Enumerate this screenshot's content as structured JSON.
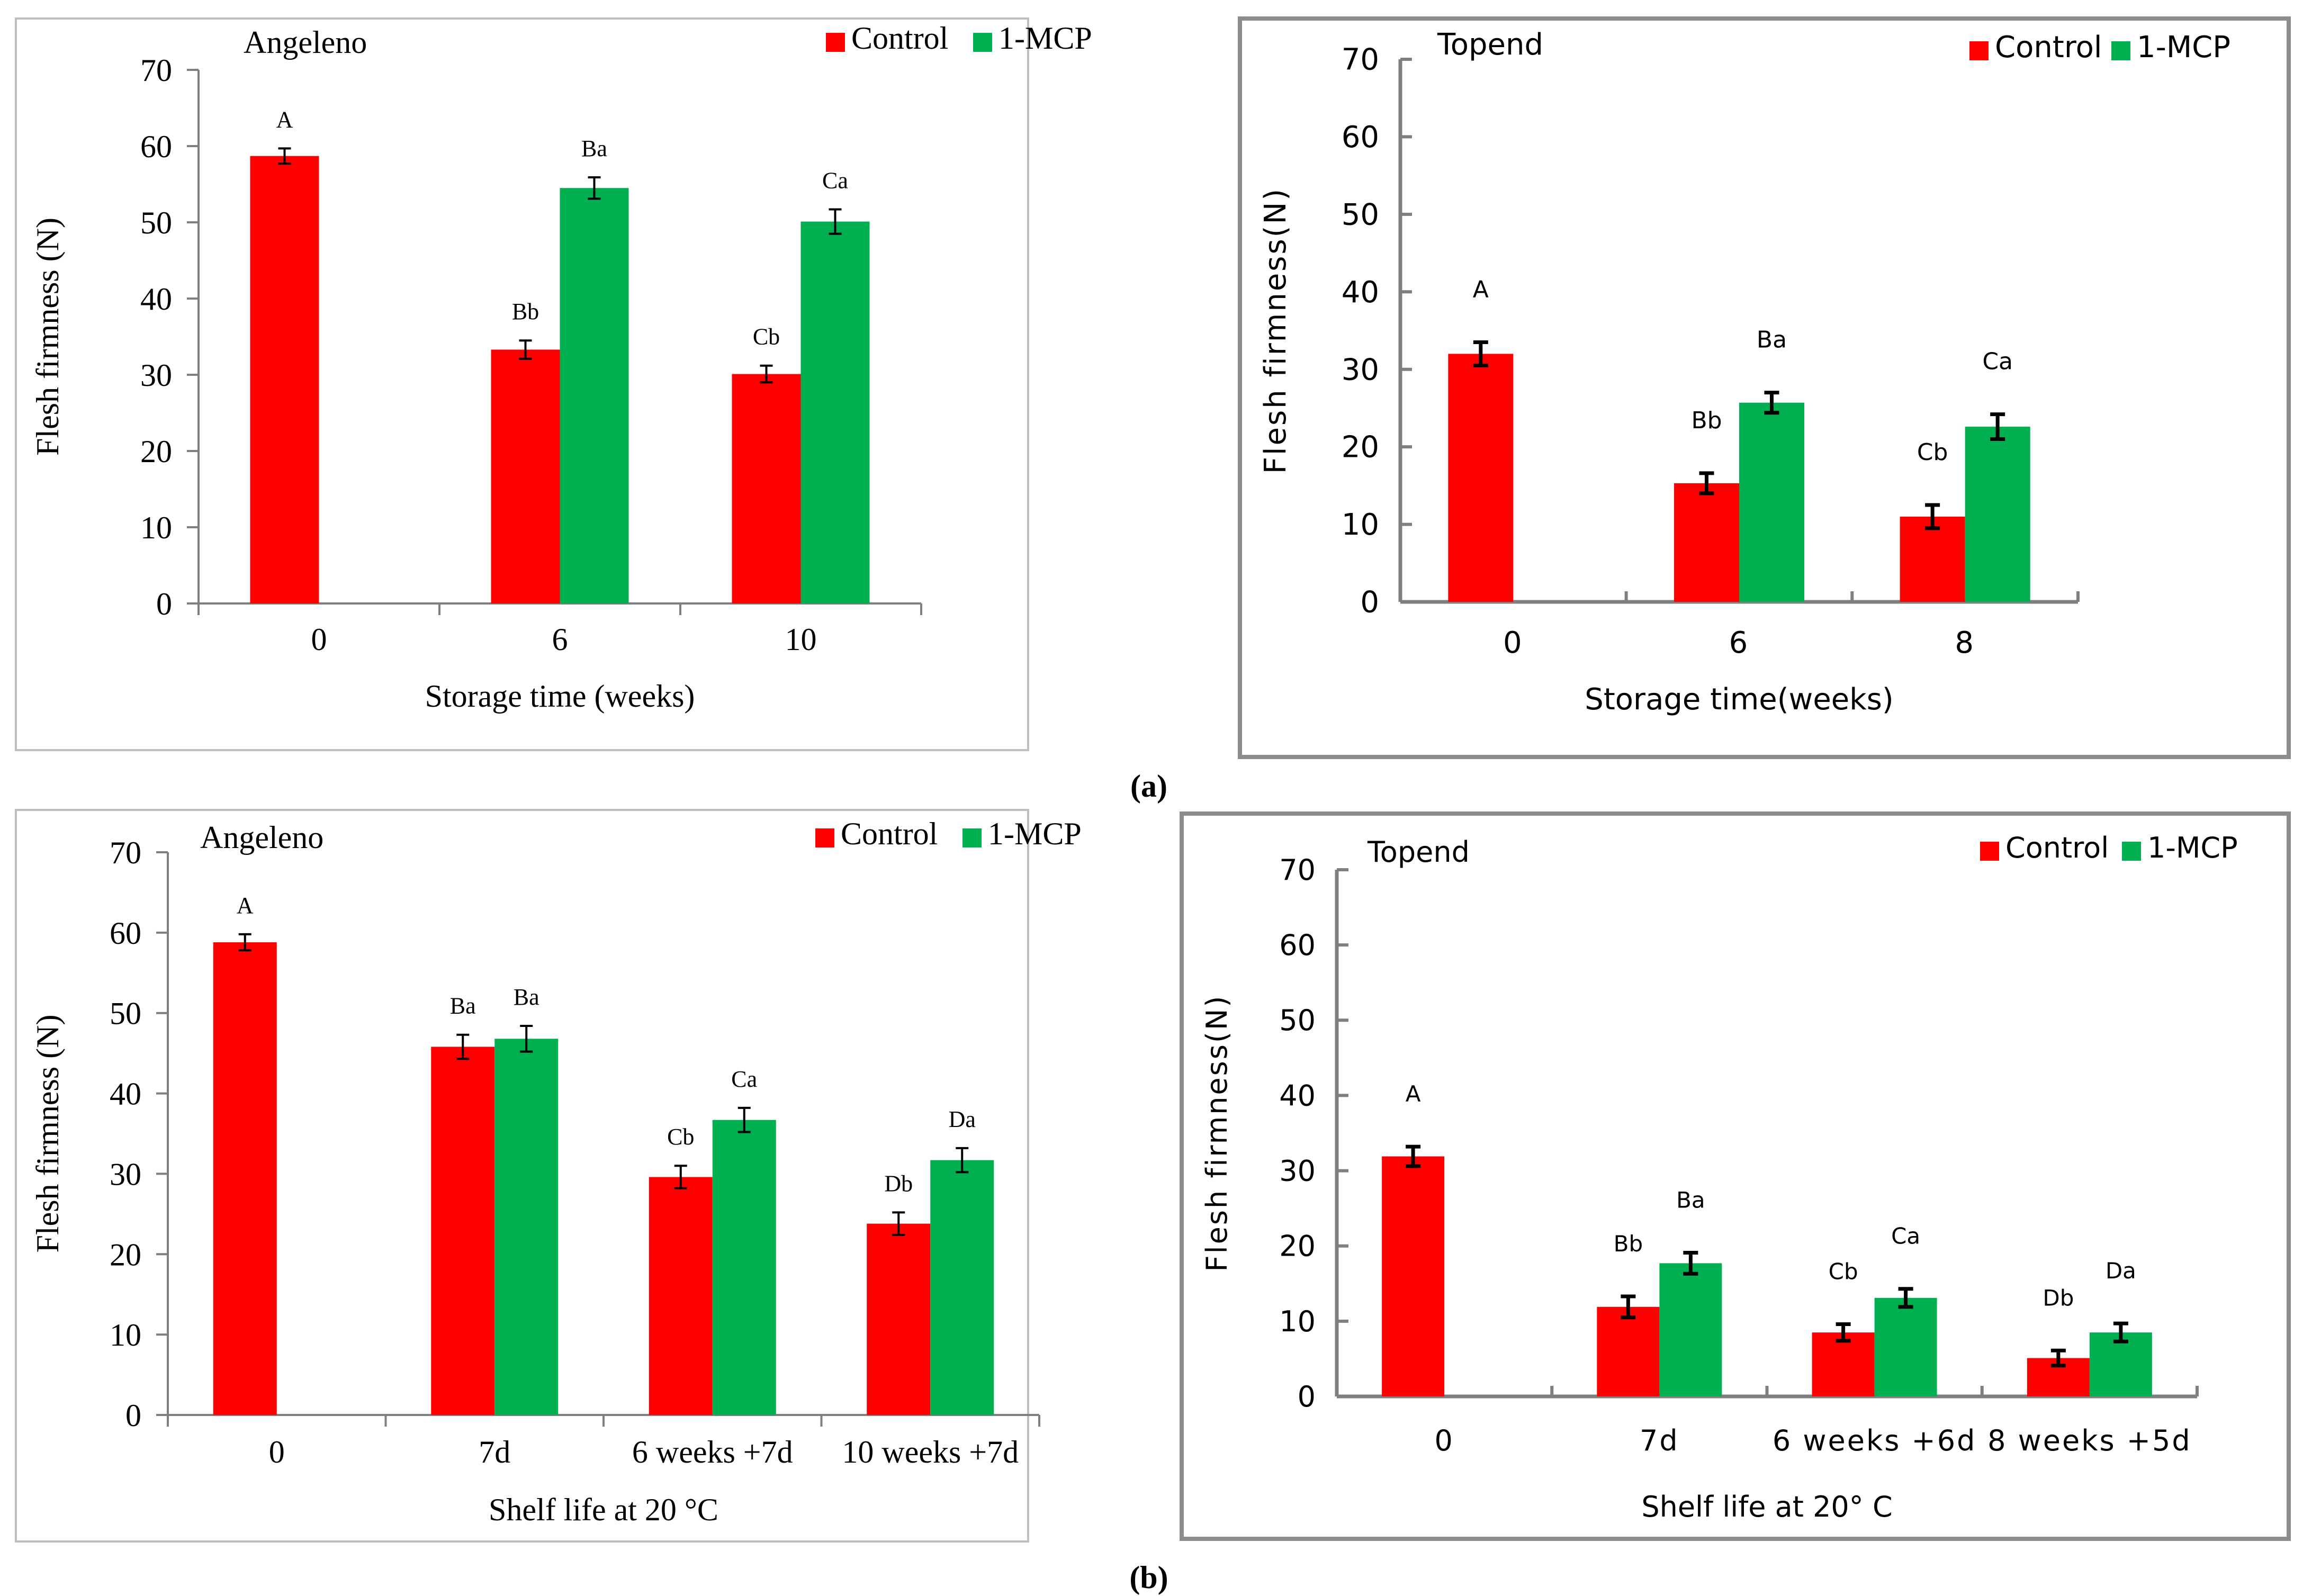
{
  "figure": {
    "panel_a_label": "(a)",
    "panel_b_label": "(b)"
  },
  "colors": {
    "control": "#ff0000",
    "mcp": "#00b050",
    "axis": "#7f7f7f",
    "frame_light": "#bfbfbf",
    "frame_dark": "#8c8c8c"
  },
  "chart_data": [
    {
      "type": "bar",
      "title": "Angeleno",
      "xlabel": "Storage time (weeks)",
      "ylabel": "Flesh firmness (N)",
      "ylim": [
        0,
        70
      ],
      "yticks": [
        0,
        10,
        20,
        30,
        40,
        50,
        60,
        70
      ],
      "categories": [
        "0",
        "6",
        "10"
      ],
      "legend": [
        "Control",
        "1-MCP"
      ],
      "series": [
        {
          "name": "Control",
          "values": [
            58.7,
            33.3,
            30.1
          ],
          "errors": [
            1.0,
            1.2,
            1.1
          ],
          "labels": [
            "A",
            "Bb",
            "Cb"
          ]
        },
        {
          "name": "1-MCP",
          "values": [
            null,
            54.5,
            50.1
          ],
          "errors": [
            null,
            1.4,
            1.6
          ],
          "labels": [
            null,
            "Ba",
            "Ca"
          ]
        }
      ]
    },
    {
      "type": "bar",
      "title": "Topend",
      "xlabel": "Storage time(weeks)",
      "ylabel": "Flesh firmness(N)",
      "ylim": [
        0,
        70
      ],
      "yticks": [
        0,
        10,
        20,
        30,
        40,
        50,
        60,
        70
      ],
      "categories": [
        "0",
        "6",
        "8"
      ],
      "legend": [
        "Control",
        "1-MCP"
      ],
      "series": [
        {
          "name": "Control",
          "values": [
            32.0,
            15.3,
            11.0
          ],
          "errors": [
            1.5,
            1.3,
            1.5
          ],
          "labels": [
            "A",
            "Bb",
            "Cb"
          ]
        },
        {
          "name": "1-MCP",
          "values": [
            null,
            25.7,
            22.6
          ],
          "errors": [
            null,
            1.3,
            1.6
          ],
          "labels": [
            null,
            "Ba",
            "Ca"
          ]
        }
      ]
    },
    {
      "type": "bar",
      "title": "Angeleno",
      "xlabel": "Shelf life at 20 °C",
      "ylabel": "Flesh firmness (N)",
      "ylim": [
        0,
        70
      ],
      "yticks": [
        0,
        10,
        20,
        30,
        40,
        50,
        60,
        70
      ],
      "categories": [
        "0",
        "7d",
        "6 weeks +7d",
        "10 weeks +7d"
      ],
      "legend": [
        "Control",
        "1-MCP"
      ],
      "series": [
        {
          "name": "Control",
          "values": [
            58.8,
            45.8,
            29.6,
            23.8
          ],
          "errors": [
            1.0,
            1.5,
            1.4,
            1.4
          ],
          "labels": [
            "A",
            "Ba",
            "Cb",
            "Db"
          ]
        },
        {
          "name": "1-MCP",
          "values": [
            null,
            46.8,
            36.7,
            31.7
          ],
          "errors": [
            null,
            1.6,
            1.5,
            1.5
          ],
          "labels": [
            null,
            "Ba",
            "Ca",
            "Da"
          ]
        }
      ]
    },
    {
      "type": "bar",
      "title": "Topend",
      "xlabel": "Shelf life at 20° C",
      "ylabel": "Flesh firmness(N)",
      "ylim": [
        0,
        70
      ],
      "yticks": [
        0,
        10,
        20,
        30,
        40,
        50,
        60,
        70
      ],
      "categories": [
        "0",
        "7d",
        "6 weeks +6d",
        "8 weeks +5d"
      ],
      "legend": [
        "Control",
        "1-MCP"
      ],
      "series": [
        {
          "name": "Control",
          "values": [
            31.9,
            11.9,
            8.5,
            5.1
          ],
          "errors": [
            1.3,
            1.4,
            1.1,
            1.0
          ],
          "labels": [
            "A",
            "Bb",
            "Cb",
            "Db"
          ]
        },
        {
          "name": "1-MCP",
          "values": [
            null,
            17.7,
            13.1,
            8.5
          ],
          "errors": [
            null,
            1.4,
            1.2,
            1.2
          ],
          "labels": [
            null,
            "Ba",
            "Ca",
            "Da"
          ]
        }
      ]
    }
  ]
}
